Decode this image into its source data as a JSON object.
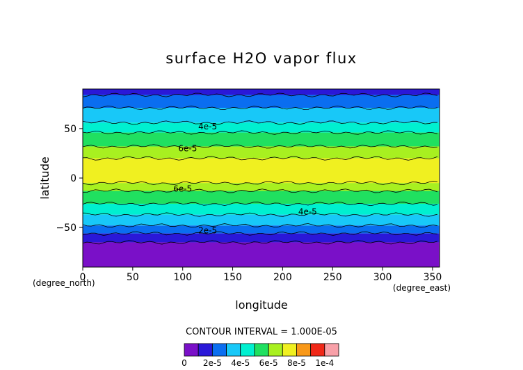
{
  "chart_data": {
    "type": "heatmap",
    "title": "surface H2O vapor flux",
    "xlabel": "longitude",
    "ylabel": "latitude",
    "x_units": "(degree_east)",
    "y_units": "(degree_north)",
    "xlim": [
      0,
      357
    ],
    "ylim": [
      -90,
      90
    ],
    "x_ticks": [
      0,
      50,
      100,
      150,
      200,
      250,
      300,
      350
    ],
    "y_ticks": [
      -50,
      0,
      50
    ],
    "contour_interval_text": "CONTOUR INTERVAL = 1.000E-05",
    "colorbar": {
      "levels": [
        0,
        1e-05,
        2e-05,
        3e-05,
        4e-05,
        5e-05,
        6e-05,
        7e-05,
        8e-05,
        9e-05,
        0.0001
      ],
      "labels": [
        "0",
        "2e-5",
        "4e-5",
        "6e-5",
        "8e-5",
        "1e-4"
      ],
      "colors": [
        "#7a10c8",
        "#2a18d8",
        "#0a6ef0",
        "#18c8f8",
        "#00f0d0",
        "#20e060",
        "#a8f020",
        "#f0f020",
        "#f89818",
        "#f02818",
        "#f8a0a8"
      ]
    },
    "zonal_bands": [
      {
        "lat_range": [
          84,
          90
        ],
        "level_range": [
          "1e-5",
          "2e-5"
        ]
      },
      {
        "lat_range": [
          71,
          84
        ],
        "level_range": [
          "2e-5",
          "3e-5"
        ]
      },
      {
        "lat_range": [
          56,
          71
        ],
        "level_range": [
          "3e-5",
          "4e-5"
        ]
      },
      {
        "lat_range": [
          46,
          56
        ],
        "level_range": [
          "4e-5",
          "5e-5"
        ]
      },
      {
        "lat_range": [
          32,
          46
        ],
        "level_range": [
          "5e-5",
          "6e-5"
        ]
      },
      {
        "lat_range": [
          20,
          32
        ],
        "level_range": [
          "6e-5",
          "7e-5"
        ]
      },
      {
        "lat_range": [
          -5,
          20
        ],
        "level_range": [
          "7e-5",
          "8e-5"
        ]
      },
      {
        "lat_range": [
          -13,
          -5
        ],
        "level_range": [
          "6e-5",
          "7e-5"
        ]
      },
      {
        "lat_range": [
          -26,
          -13
        ],
        "level_range": [
          "5e-5",
          "6e-5"
        ]
      },
      {
        "lat_range": [
          -37,
          -26
        ],
        "level_range": [
          "4e-5",
          "5e-5"
        ]
      },
      {
        "lat_range": [
          -48,
          -37
        ],
        "level_range": [
          "3e-5",
          "4e-5"
        ]
      },
      {
        "lat_range": [
          -56,
          -48
        ],
        "level_range": [
          "2e-5",
          "3e-5"
        ]
      },
      {
        "lat_range": [
          -65,
          -56
        ],
        "level_range": [
          "1e-5",
          "2e-5"
        ]
      },
      {
        "lat_range": [
          -90,
          -65
        ],
        "level_range": [
          "0",
          "1e-5"
        ]
      }
    ],
    "contour_labels": [
      {
        "text": "4e-5",
        "lon": 125,
        "lat": 52
      },
      {
        "text": "6e-5",
        "lon": 105,
        "lat": 30
      },
      {
        "text": "6e-5",
        "lon": 100,
        "lat": -11
      },
      {
        "text": "4e-5",
        "lon": 225,
        "lat": -34
      },
      {
        "text": "2e-5",
        "lon": 125,
        "lat": -53
      }
    ]
  }
}
